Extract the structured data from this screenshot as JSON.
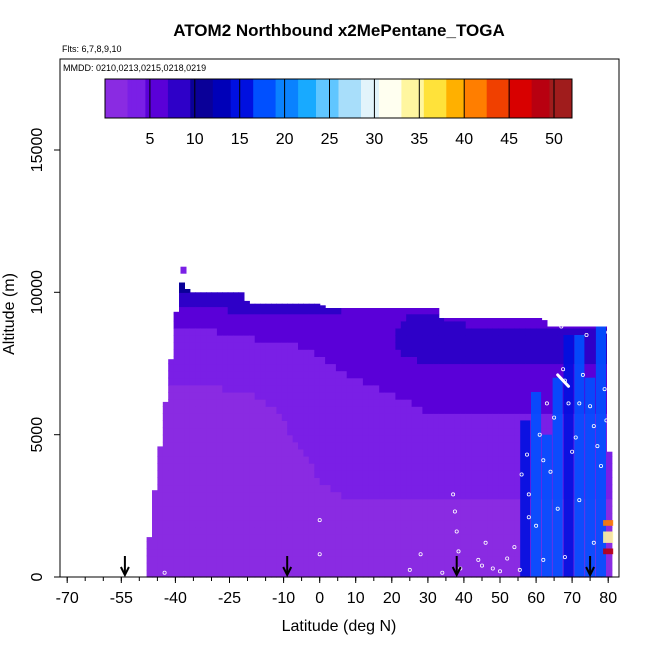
{
  "chart_data": {
    "type": "heatmap",
    "title": "ATOM2 Northbound x2MePentane_TOGA",
    "flights_note": "Flts: 6,7,8,9,10",
    "dates_note": "MMDD: 0210,0213,0215,0218,0219",
    "xlabel": "Latitude (deg N)",
    "ylabel": "Altitude (m)",
    "xlim": [
      -72,
      83
    ],
    "ylim": [
      0,
      17500
    ],
    "x_ticks": [
      -70,
      -55,
      -40,
      -25,
      -10,
      0,
      10,
      20,
      30,
      40,
      50,
      60,
      70,
      80
    ],
    "x_tick_labels": [
      "-70",
      "-55",
      "-40",
      "-25",
      "-10",
      "0",
      "10",
      "20",
      "30",
      "40",
      "50",
      "60",
      "70",
      "80"
    ],
    "y_ticks": [
      0,
      5000,
      10000,
      15000
    ],
    "y_tick_labels": [
      "0",
      "5000",
      "10000",
      "15000"
    ],
    "colorbar": {
      "range": [
        0,
        52
      ],
      "ticks": [
        5,
        10,
        15,
        20,
        25,
        30,
        35,
        40,
        45,
        50
      ],
      "tick_labels": [
        "5",
        "10",
        "15",
        "20",
        "25",
        "30",
        "35",
        "40",
        "45",
        "50"
      ],
      "colors": [
        "#8a2be2",
        "#7a1fe6",
        "#5a00d8",
        "#2e00c8",
        "#0a0098",
        "#0000b8",
        "#0010e0",
        "#0050ff",
        "#0a82ff",
        "#18aaff",
        "#60c6ff",
        "#a8defa",
        "#e2f4fb",
        "#fffff0",
        "#fff6a0",
        "#ffe23a",
        "#ffb000",
        "#ff7e00",
        "#f04000",
        "#d80000",
        "#b80010",
        "#a01c1c"
      ]
    },
    "flight_profile_top": [
      [
        -48,
        200
      ],
      [
        -47,
        1800
      ],
      [
        -45,
        3800
      ],
      [
        -43,
        5900
      ],
      [
        -41,
        7900
      ],
      [
        -39.5,
        9600
      ],
      [
        -38.6,
        10400
      ],
      [
        -36,
        10000
      ],
      [
        -21,
        10000
      ],
      [
        -20,
        9600
      ],
      [
        0,
        9600
      ],
      [
        2,
        9450
      ],
      [
        33,
        9450
      ],
      [
        33.5,
        9100
      ],
      [
        62,
        9100
      ],
      [
        63,
        8800
      ],
      [
        80,
        8800
      ],
      [
        80.5,
        0
      ]
    ],
    "field_values": [
      [
        12,
        12,
        12,
        11,
        10,
        9,
        8,
        7.5,
        7,
        6.5,
        6
      ],
      [
        7,
        7,
        7,
        8,
        8,
        7.5,
        7,
        7,
        7,
        6.5,
        6
      ],
      [
        3,
        3,
        3,
        3.5,
        4,
        5,
        6,
        7,
        8,
        8,
        8
      ],
      [
        2,
        2,
        2,
        2,
        2.5,
        3,
        3.5,
        4,
        5,
        5,
        5
      ],
      [
        2,
        2,
        2,
        2,
        2,
        2.5,
        3,
        3,
        3,
        3,
        3
      ],
      [
        2,
        2,
        2,
        2,
        2,
        2,
        2,
        2,
        2,
        2,
        2
      ],
      [
        1.5,
        1.5,
        1.5,
        1.5,
        1.5,
        1.5,
        1.5,
        1.5,
        1.5,
        1.5,
        1.5
      ]
    ],
    "field_lat": [
      -48,
      -40,
      -30,
      -20,
      -10,
      0,
      10,
      20,
      30,
      40,
      50
    ],
    "field_alt": [
      10500,
      9500,
      8000,
      6000,
      4000,
      2000,
      0
    ],
    "high_value_patches": [
      {
        "lat": 57,
        "alt_from": 0,
        "alt_to": 5500,
        "value": 16
      },
      {
        "lat": 60,
        "alt_from": 0,
        "alt_to": 6500,
        "value": 17
      },
      {
        "lat": 63,
        "alt_from": 0,
        "alt_to": 5000,
        "value": 18
      },
      {
        "lat": 66,
        "alt_from": 0,
        "alt_to": 7000,
        "value": 17
      },
      {
        "lat": 69,
        "alt_from": 0,
        "alt_to": 8500,
        "value": 16
      },
      {
        "lat": 72,
        "alt_from": 0,
        "alt_to": 8500,
        "value": 17
      },
      {
        "lat": 75,
        "alt_from": 0,
        "alt_to": 7000,
        "value": 18
      },
      {
        "lat": 78,
        "alt_from": 0,
        "alt_to": 8800,
        "value": 17
      },
      {
        "lat": 80,
        "alt_from": 1800,
        "alt_to": 2000,
        "value": 42
      },
      {
        "lat": 80,
        "alt_from": 1200,
        "alt_to": 1600,
        "value": 35
      },
      {
        "lat": 80,
        "alt_from": 800,
        "alt_to": 1000,
        "value": 48
      }
    ],
    "samples": [
      [
        -43,
        150
      ],
      [
        0,
        2000
      ],
      [
        0,
        800
      ],
      [
        28,
        800
      ],
      [
        34,
        150
      ],
      [
        37,
        2900
      ],
      [
        37.5,
        2300
      ],
      [
        38,
        1600
      ],
      [
        38.5,
        900
      ],
      [
        39,
        300
      ],
      [
        44,
        600
      ],
      [
        45,
        400
      ],
      [
        48,
        300
      ],
      [
        50,
        200
      ],
      [
        52,
        650
      ],
      [
        54,
        1050
      ],
      [
        55.5,
        250
      ],
      [
        56,
        3600
      ],
      [
        57.5,
        4300
      ],
      [
        58,
        2900
      ],
      [
        60,
        1800
      ],
      [
        61,
        5000
      ],
      [
        62,
        4100
      ],
      [
        63,
        6100
      ],
      [
        64,
        3700
      ],
      [
        65,
        5600
      ],
      [
        66,
        2400
      ],
      [
        67,
        8800
      ],
      [
        67.5,
        7300
      ],
      [
        68,
        6900
      ],
      [
        69,
        6100
      ],
      [
        70,
        4400
      ],
      [
        71,
        4900
      ],
      [
        72,
        6100
      ],
      [
        73,
        7100
      ],
      [
        74,
        8500
      ],
      [
        75,
        6000
      ],
      [
        76,
        5300
      ],
      [
        77,
        4600
      ],
      [
        78,
        3900
      ],
      [
        79,
        6600
      ],
      [
        79.5,
        5500
      ],
      [
        80,
        8600
      ],
      [
        62,
        600
      ],
      [
        68,
        700
      ],
      [
        72,
        2700
      ],
      [
        76,
        1200
      ],
      [
        25,
        250
      ],
      [
        46,
        1200
      ],
      [
        58,
        2100
      ]
    ],
    "white_path": [
      [
        66,
        7100
      ],
      [
        69,
        6700
      ]
    ],
    "arrow_lats": [
      -54,
      -9,
      38,
      75
    ]
  }
}
